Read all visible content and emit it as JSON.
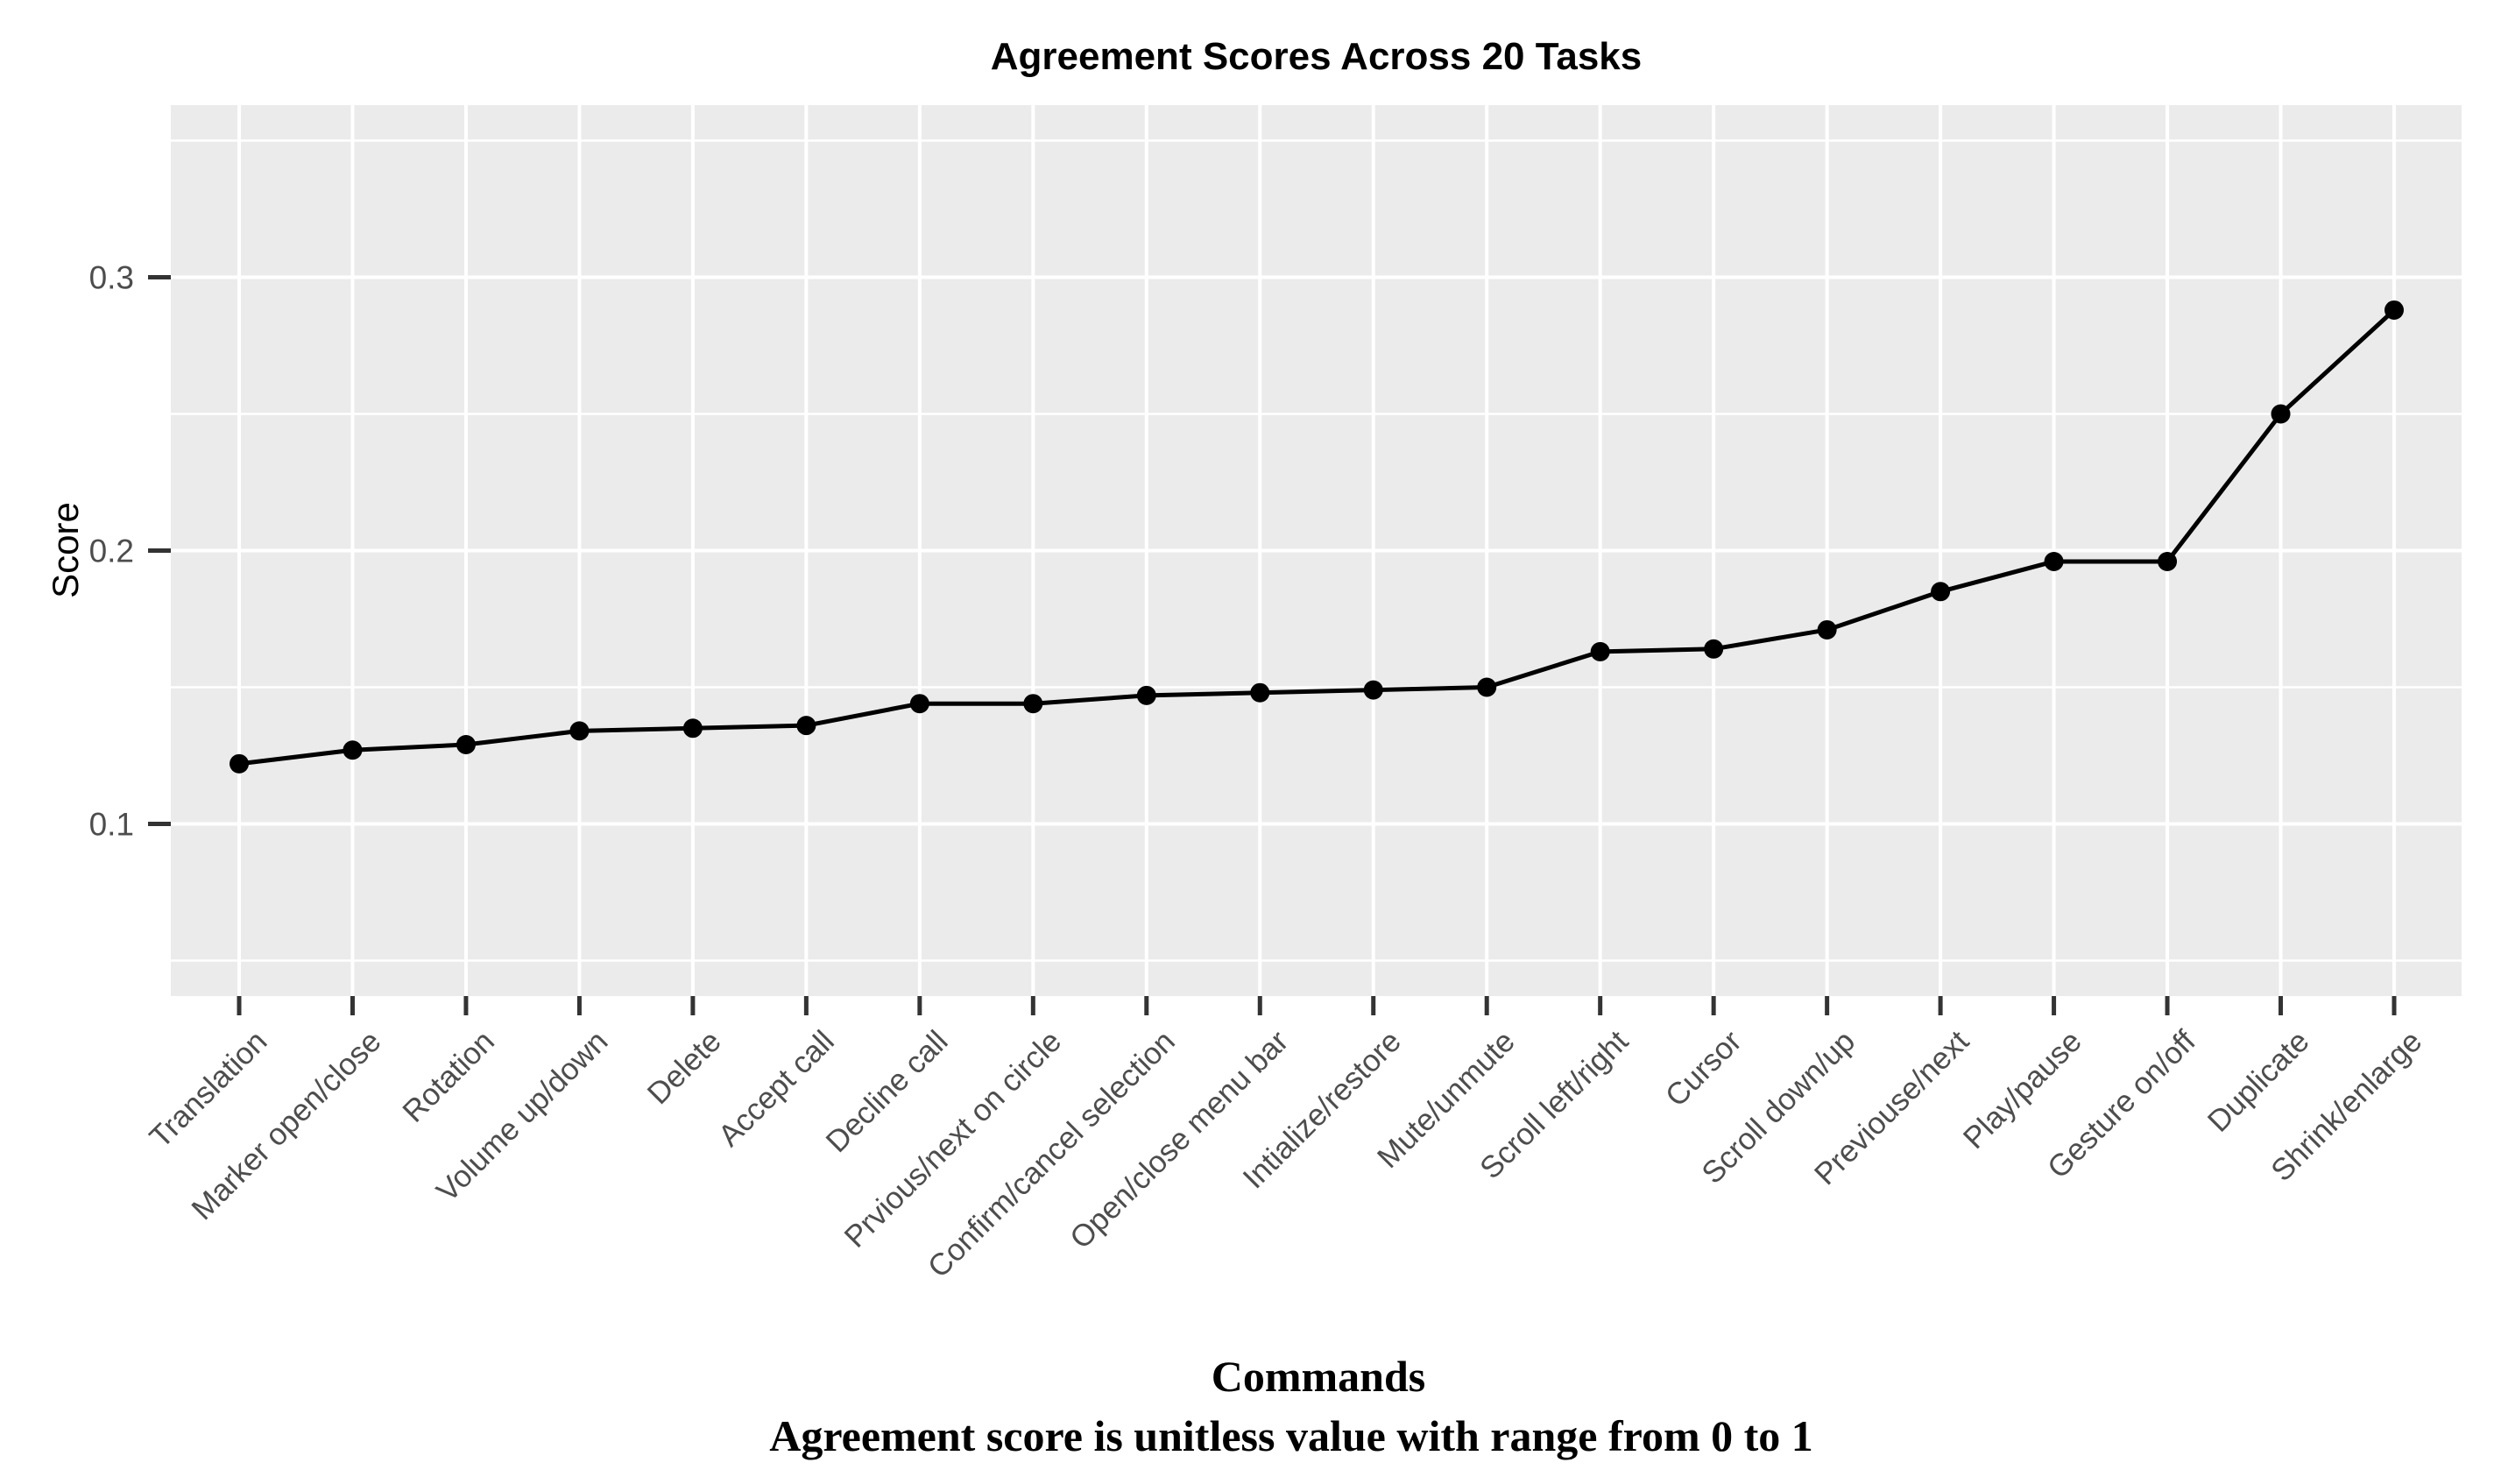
{
  "chart_data": {
    "type": "line",
    "title": "Agreement Scores Across 20 Tasks",
    "xlabel": "Commands",
    "ylabel": "Score",
    "caption": "Agreement score is unitless value with range from 0 to 1",
    "categories": [
      "Translation",
      "Marker open/close",
      "Rotation",
      "Volume up/down",
      "Delete",
      "Accept call",
      "Decline call",
      "Prvious/next on circle",
      "Confirm/cancel selection",
      "Open/close menu bar",
      "Intialize/restore",
      "Mute/unmute",
      "Scroll left/right",
      "Cursor",
      "Scroll down/up",
      "Previouse/next",
      "Play/pause",
      "Gesture on/off",
      "Duplicate",
      "Shrink/enlarge"
    ],
    "values": [
      0.122,
      0.127,
      0.129,
      0.134,
      0.135,
      0.136,
      0.144,
      0.144,
      0.147,
      0.148,
      0.149,
      0.15,
      0.163,
      0.164,
      0.171,
      0.185,
      0.196,
      0.196,
      0.25,
      0.288
    ],
    "ylim": [
      0.037,
      0.363
    ],
    "yticks": [
      0.1,
      0.2,
      0.3
    ],
    "ytick_labels": [
      "0.1",
      "0.2",
      "0.3"
    ],
    "minor_yticks": [
      0.05,
      0.15,
      0.25,
      0.35
    ],
    "grid": true,
    "legend_position": "none",
    "x_tick_label_angle": 45,
    "line_color": "#000000",
    "point_color": "#000000",
    "style": {
      "panel_bg": "#EBEBEB",
      "grid_color": "#FFFFFF",
      "tick_mark_color": "#333333",
      "axis_text_color": "#4D4D4D",
      "title_color": "#000000"
    }
  }
}
